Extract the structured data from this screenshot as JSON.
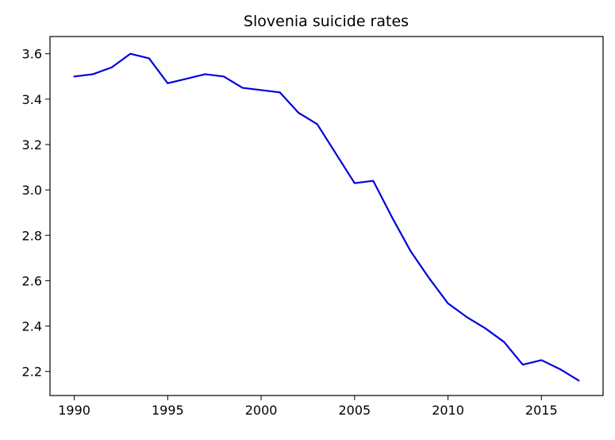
{
  "chart_data": {
    "type": "line",
    "title": "Slovenia suicide rates",
    "xlabel": "",
    "ylabel": "",
    "xlim": [
      1988.7,
      2018.3
    ],
    "ylim": [
      2.094,
      3.676
    ],
    "xticks": [
      1990,
      1995,
      2000,
      2005,
      2010,
      2015
    ],
    "yticks": [
      2.2,
      2.4,
      2.6,
      2.8,
      3.0,
      3.2,
      3.4,
      3.6
    ],
    "ytick_labels": [
      "2.2",
      "2.4",
      "2.6",
      "2.8",
      "3.0",
      "3.2",
      "3.4",
      "3.6"
    ],
    "grid": false,
    "legend": "none",
    "line_color": "#0000dd",
    "series": [
      {
        "x": [
          1990,
          1991,
          1992,
          1993,
          1994,
          1995,
          1996,
          1997,
          1998,
          1999,
          2000,
          2001,
          2002,
          2003,
          2004,
          2005,
          2006,
          2007,
          2008,
          2009,
          2010,
          2011,
          2012,
          2013,
          2014,
          2015,
          2016,
          2017
        ],
        "values": [
          3.5,
          3.51,
          3.54,
          3.6,
          3.58,
          3.47,
          3.49,
          3.51,
          3.5,
          3.45,
          3.44,
          3.43,
          3.34,
          3.29,
          3.16,
          3.03,
          3.04,
          2.88,
          2.73,
          2.61,
          2.5,
          2.44,
          2.39,
          2.33,
          2.23,
          2.25,
          2.21,
          2.16
        ]
      }
    ]
  }
}
